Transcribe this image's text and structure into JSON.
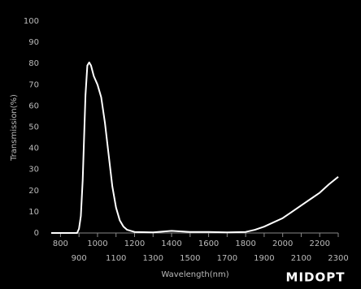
{
  "chart_data": {
    "type": "line",
    "y_label": "Transmission(%)",
    "x_label": "Wavelength(nm)",
    "logo": "MIDOPT",
    "xlim": [
      750,
      2300
    ],
    "ylim": [
      0,
      100
    ],
    "xticks": [
      800,
      900,
      1000,
      1100,
      1200,
      1300,
      1400,
      1500,
      1600,
      1700,
      1800,
      1900,
      2000,
      2100,
      2200,
      2300
    ],
    "yticks": [
      0,
      10,
      20,
      30,
      40,
      50,
      60,
      70,
      80,
      90,
      100
    ],
    "grid": false,
    "series": [
      {
        "name": "Transmission",
        "color": "#ffffff",
        "x": [
          750,
          890,
          900,
          910,
          920,
          935,
          945,
          955,
          965,
          980,
          1000,
          1020,
          1040,
          1060,
          1080,
          1100,
          1120,
          1140,
          1160,
          1200,
          1300,
          1400,
          1500,
          1600,
          1700,
          1800,
          1850,
          1900,
          1950,
          2000,
          2050,
          2100,
          2150,
          2200,
          2250,
          2300
        ],
        "values": [
          0,
          0,
          2,
          8,
          25,
          65,
          79,
          80.5,
          79,
          74,
          70,
          64,
          52,
          37,
          22,
          12,
          6,
          3,
          1.5,
          0.5,
          0.3,
          1,
          0.5,
          0.5,
          0.3,
          0.5,
          1.5,
          3,
          5,
          7,
          10,
          13,
          16,
          19,
          23,
          26.5
        ]
      }
    ]
  }
}
